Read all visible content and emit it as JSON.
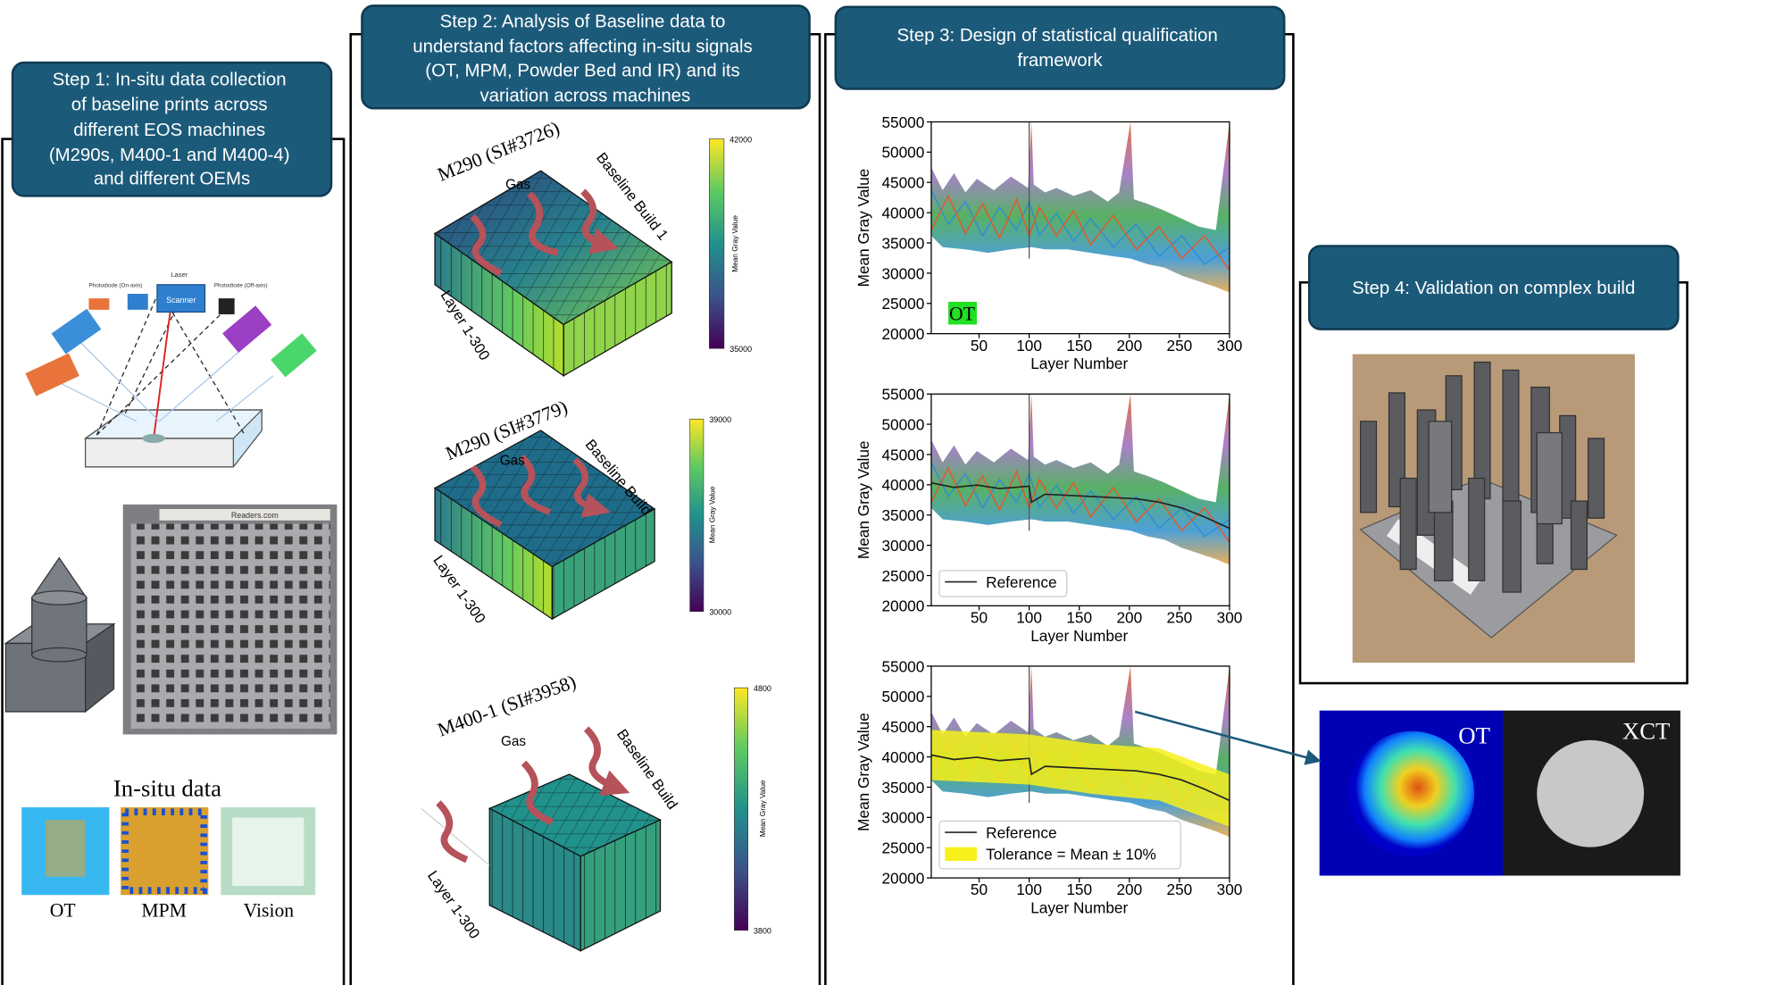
{
  "step1": {
    "title_lines": [
      "Step 1: In-situ data collection",
      "of baseline prints across",
      "different EOS machines",
      "(M290s, M400-1 and M400-4)",
      "and different OEMs"
    ],
    "schematic": {
      "laser": "Laser",
      "scanner": "Scanner",
      "photodiode_on": "Photodiode (On-axis)",
      "photodiode_off": "Photodiode (Off-axis)"
    },
    "plate_label": "Readers.com",
    "insitu": {
      "title": "In-situ data",
      "labels": [
        "OT",
        "MPM",
        "Vision"
      ]
    }
  },
  "step2": {
    "title_lines": [
      "Step 2: Analysis of Baseline data to",
      "understand factors affecting in-situ signals",
      "(OT, MPM, Powder Bed and IR) and its",
      "variation across machines"
    ],
    "plots": [
      {
        "title": "M290 (SI#3726)",
        "gas": "Gas",
        "build": "Baseline Build 1",
        "layers": "Layer 1-300",
        "colorbar_label": "Mean Gray Value",
        "colorbar_max": 42000,
        "colorbar_min": 35000
      },
      {
        "title": "M290 (SI#3779)",
        "gas": "Gas",
        "build": "Baseline Build",
        "layers": "Layer 1-300",
        "colorbar_label": "Mean Gray Value",
        "colorbar_max": 39000,
        "colorbar_min": 30000
      },
      {
        "title": "M400-1 (SI#3958)",
        "gas": "Gas",
        "build": "Baseline Build",
        "layers": "Layer 1-300",
        "colorbar_label": "Mean Gray Value",
        "colorbar_max": 4800,
        "colorbar_min": 3800
      }
    ]
  },
  "step3": {
    "title_lines": [
      "Step 3: Design of statistical qualification",
      "framework"
    ],
    "charts": [
      {
        "y_label": "Mean Gray Value",
        "x_label": "Layer Number",
        "yticks": [
          20000,
          25000,
          30000,
          35000,
          40000,
          45000,
          50000,
          55000
        ],
        "xticks": [
          50,
          100,
          150,
          200,
          250,
          300
        ],
        "annotation": "OT"
      },
      {
        "y_label": "Mean Gray Value",
        "x_label": "Layer Number",
        "yticks": [
          20000,
          25000,
          30000,
          35000,
          40000,
          45000,
          50000,
          55000
        ],
        "xticks": [
          50,
          100,
          150,
          200,
          250,
          300
        ],
        "legend": [
          "Reference"
        ]
      },
      {
        "y_label": "Mean Gray Value",
        "x_label": "Layer Number",
        "yticks": [
          20000,
          25000,
          30000,
          35000,
          40000,
          45000,
          50000,
          55000
        ],
        "xticks": [
          50,
          100,
          150,
          200,
          250,
          300
        ],
        "legend": [
          "Reference",
          "Tolerance = Mean ± 10%"
        ]
      }
    ]
  },
  "step4": {
    "title": "Step 4: Validation on complex build",
    "labels": [
      "OT",
      "XCT"
    ]
  }
}
